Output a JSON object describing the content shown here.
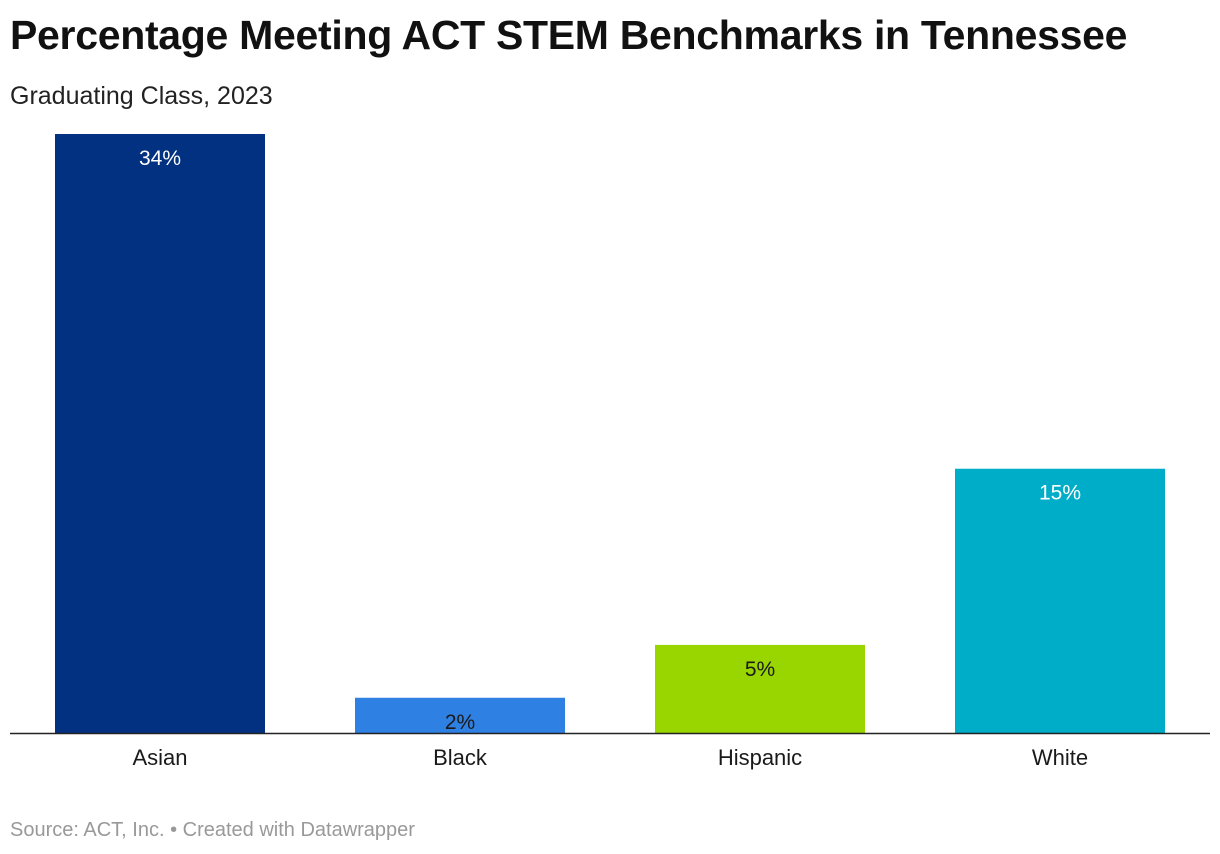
{
  "header": {
    "title": "Percentage Meeting ACT STEM Benchmarks in Tennessee",
    "subtitle": "Graduating Class, 2023"
  },
  "footer": {
    "source": "Source: ACT, Inc. • Created with Datawrapper"
  },
  "chart_data": {
    "type": "bar",
    "title": "Percentage Meeting ACT STEM Benchmarks in Tennessee",
    "subtitle": "Graduating Class, 2023",
    "categories": [
      "Asian",
      "Black",
      "Hispanic",
      "White"
    ],
    "values": [
      34,
      2,
      5,
      15
    ],
    "labels": [
      "34%",
      "2%",
      "5%",
      "15%"
    ],
    "colors": [
      "#033182",
      "#2f80e3",
      "#99d600",
      "#00adc8"
    ],
    "label_colors": [
      "#ffffff",
      "#1a1a1a",
      "#1a1a1a",
      "#ffffff"
    ],
    "xlabel": "",
    "ylabel": "",
    "ylim": [
      0,
      34
    ],
    "grid": false,
    "legend": "none"
  }
}
